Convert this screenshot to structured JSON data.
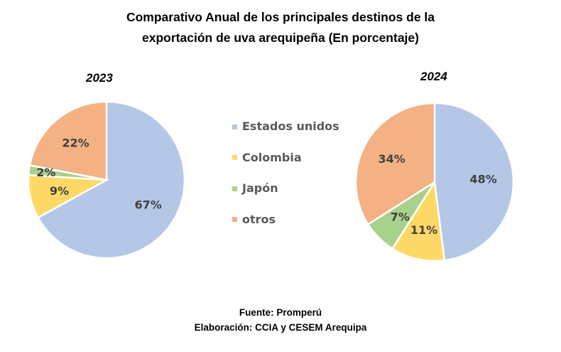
{
  "chart_data": [
    {
      "type": "pie",
      "title": "2023",
      "categories": [
        "Estados unidos",
        "Colombia",
        "Japón",
        "otros"
      ],
      "values": [
        67,
        9,
        2,
        22
      ],
      "labels": [
        "67%",
        "9%",
        "2%",
        "22%"
      ]
    },
    {
      "type": "pie",
      "title": "2024",
      "categories": [
        "Estados unidos",
        "Colombia",
        "Japón",
        "otros"
      ],
      "values": [
        48,
        11,
        7,
        34
      ],
      "labels": [
        "48%",
        "11%",
        "7%",
        "34%"
      ]
    }
  ],
  "title_line1": "Comparativo Anual de los principales destinos de la",
  "title_line2": "exportación de uva arequipeña (En porcentaje)",
  "legend": [
    {
      "label": "Estados unidos",
      "color": "#b4c7e7"
    },
    {
      "label": "Colombia",
      "color": "#ffd966"
    },
    {
      "label": "Japón",
      "color": "#a9d18e"
    },
    {
      "label": "otros",
      "color": "#f4b183"
    }
  ],
  "footer_source": "Fuente: Promperú",
  "footer_elab": "Elaboración: CCIA y CESEM Arequipa"
}
